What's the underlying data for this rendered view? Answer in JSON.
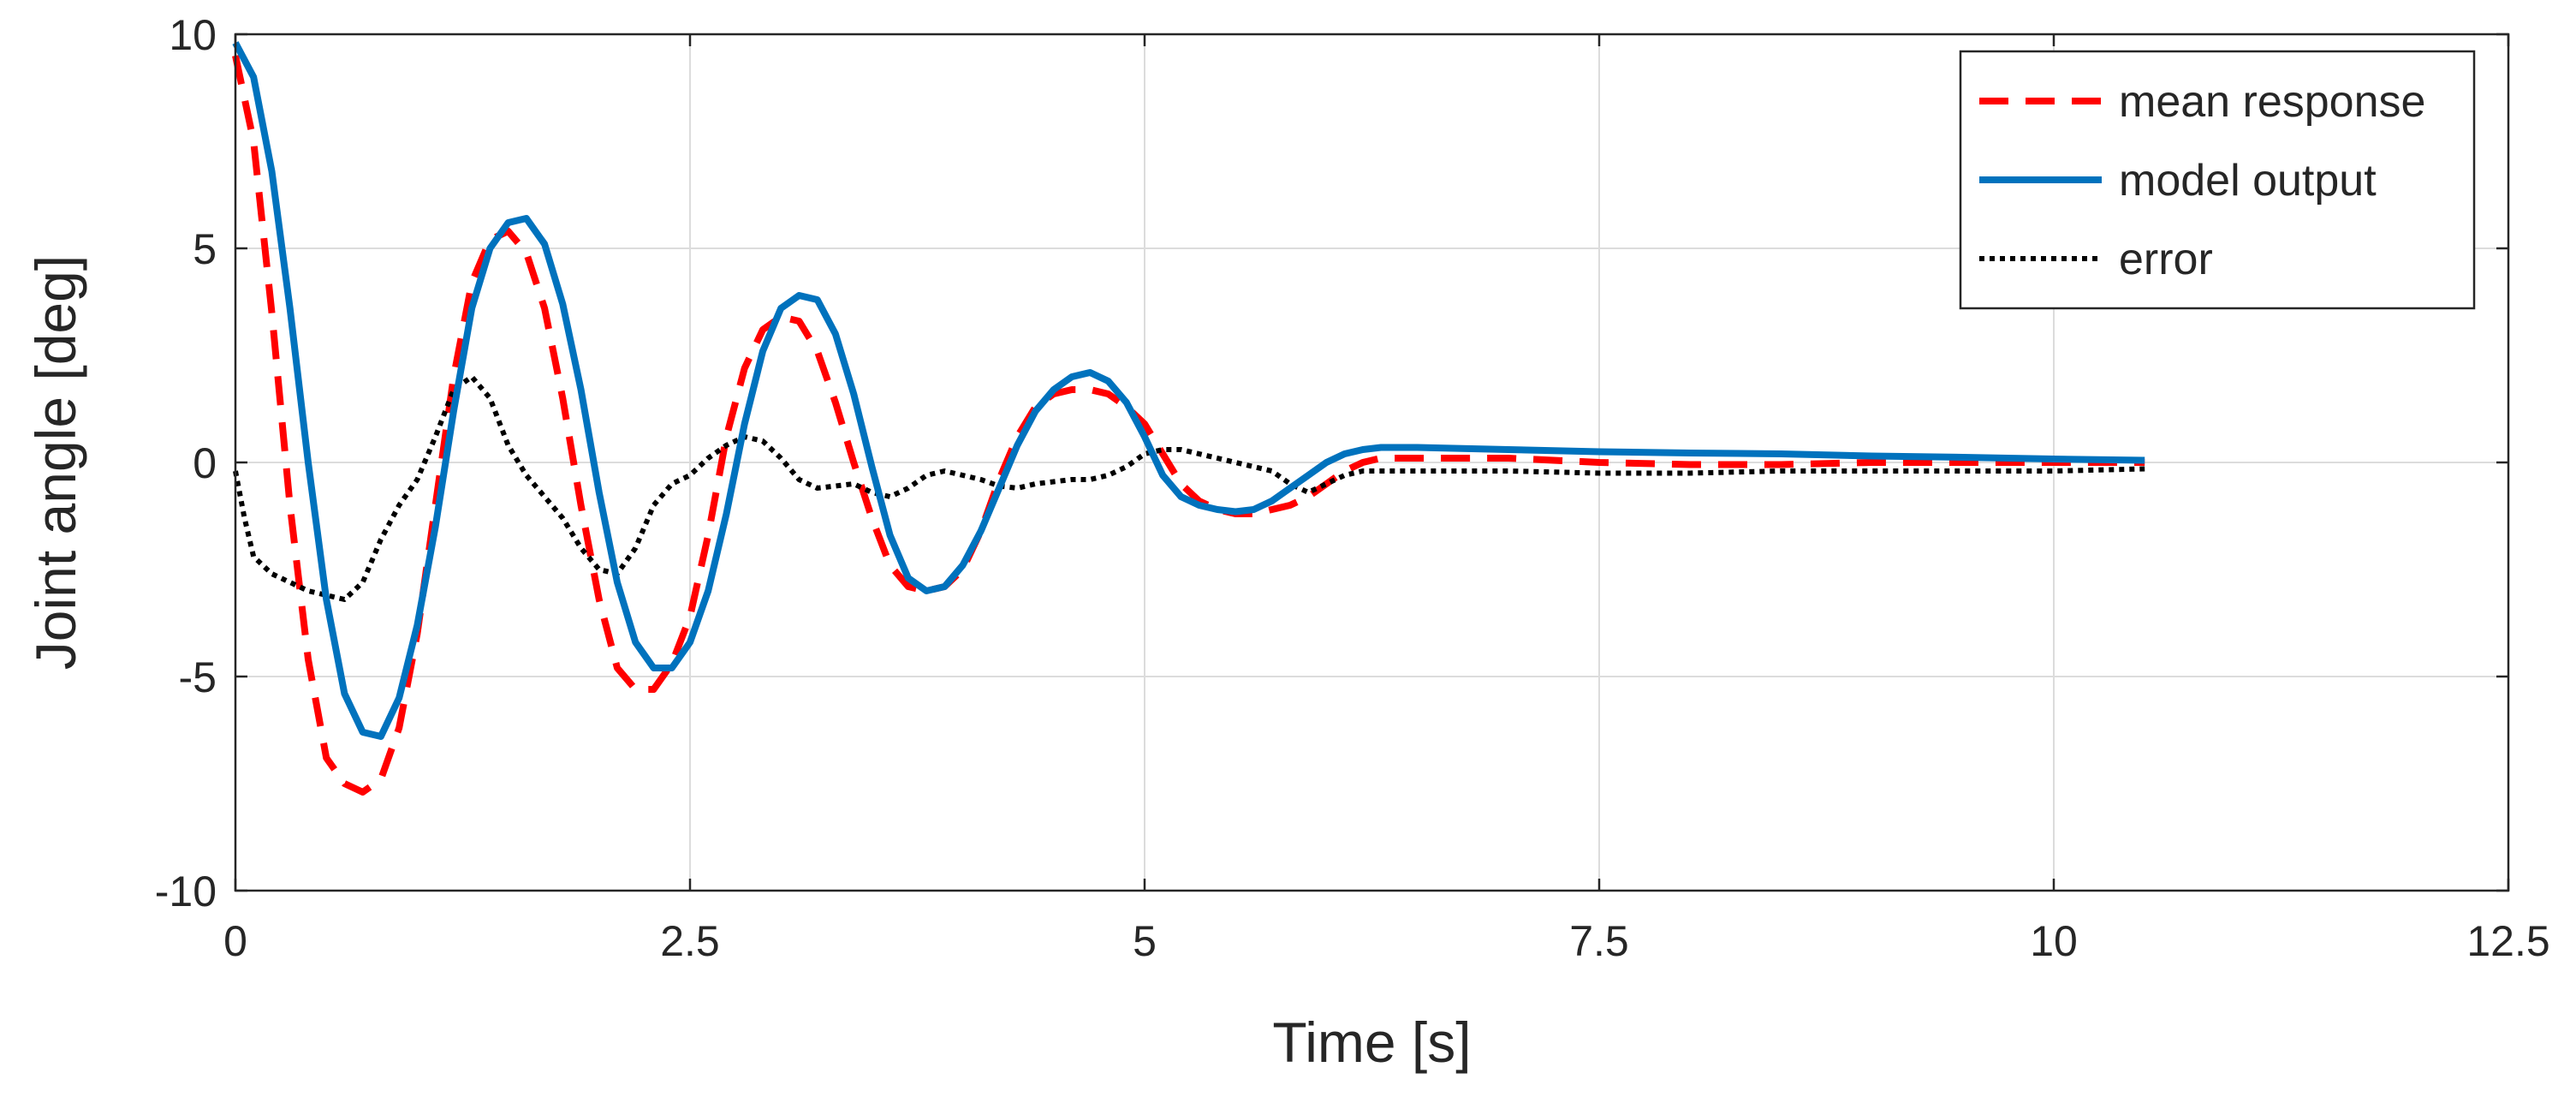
{
  "chart_data": {
    "type": "line",
    "title": "",
    "xlabel": "Time [s]",
    "ylabel": "Joint angle [deg]",
    "xlim": [
      0,
      12.5
    ],
    "ylim": [
      -10,
      10
    ],
    "xticks": [
      0,
      2.5,
      5,
      7.5,
      10,
      12.5
    ],
    "xtick_labels": [
      "0",
      "2.5",
      "5",
      "7.5",
      "10",
      "12.5"
    ],
    "yticks": [
      -10,
      -5,
      0,
      5,
      10
    ],
    "ytick_labels": [
      "-10",
      "-5",
      "0",
      "5",
      "10"
    ],
    "grid": true,
    "legend_position": "top-right",
    "series": [
      {
        "name": "mean response",
        "color": "#ff0000",
        "style": "dashed",
        "x": [
          0,
          0.1,
          0.2,
          0.3,
          0.4,
          0.5,
          0.6,
          0.7,
          0.8,
          0.9,
          1.0,
          1.1,
          1.2,
          1.3,
          1.4,
          1.5,
          1.6,
          1.7,
          1.8,
          1.9,
          2.0,
          2.1,
          2.2,
          2.3,
          2.4,
          2.5,
          2.6,
          2.7,
          2.8,
          2.9,
          3.0,
          3.1,
          3.2,
          3.3,
          3.4,
          3.5,
          3.6,
          3.7,
          3.8,
          3.9,
          4.0,
          4.1,
          4.2,
          4.3,
          4.4,
          4.5,
          4.6,
          4.7,
          4.8,
          4.9,
          5.0,
          5.1,
          5.2,
          5.3,
          5.4,
          5.5,
          5.6,
          5.7,
          5.8,
          5.9,
          6.0,
          6.1,
          6.2,
          6.3,
          6.5,
          7.0,
          7.5,
          8.0,
          8.5,
          9.0,
          9.5,
          10.0,
          10.5
        ],
        "y": [
          9.5,
          7.5,
          3.5,
          -1.0,
          -4.6,
          -6.9,
          -7.5,
          -7.7,
          -7.4,
          -6.2,
          -4.0,
          -1.0,
          2.0,
          4.2,
          5.2,
          5.4,
          4.9,
          3.6,
          1.5,
          -1.0,
          -3.2,
          -4.8,
          -5.3,
          -5.3,
          -4.7,
          -3.6,
          -1.7,
          0.6,
          2.2,
          3.1,
          3.4,
          3.3,
          2.6,
          1.4,
          0.0,
          -1.3,
          -2.4,
          -2.9,
          -3.0,
          -2.9,
          -2.5,
          -1.6,
          -0.4,
          0.6,
          1.3,
          1.6,
          1.7,
          1.7,
          1.6,
          1.3,
          0.9,
          0.2,
          -0.5,
          -0.9,
          -1.1,
          -1.2,
          -1.2,
          -1.1,
          -1.0,
          -0.8,
          -0.5,
          -0.2,
          0.0,
          0.1,
          0.1,
          0.1,
          0.0,
          -0.05,
          -0.05,
          0.0,
          0.0,
          0.0,
          0.0
        ]
      },
      {
        "name": "model output",
        "color": "#0072bd",
        "style": "solid",
        "x": [
          0,
          0.1,
          0.2,
          0.3,
          0.4,
          0.5,
          0.6,
          0.7,
          0.8,
          0.9,
          1.0,
          1.1,
          1.2,
          1.3,
          1.4,
          1.5,
          1.6,
          1.7,
          1.8,
          1.9,
          2.0,
          2.1,
          2.2,
          2.3,
          2.4,
          2.5,
          2.6,
          2.7,
          2.8,
          2.9,
          3.0,
          3.1,
          3.2,
          3.3,
          3.4,
          3.5,
          3.6,
          3.7,
          3.8,
          3.9,
          4.0,
          4.1,
          4.2,
          4.3,
          4.4,
          4.5,
          4.6,
          4.7,
          4.8,
          4.9,
          5.0,
          5.1,
          5.2,
          5.3,
          5.4,
          5.5,
          5.6,
          5.7,
          5.8,
          5.9,
          6.0,
          6.1,
          6.2,
          6.3,
          6.5,
          7.0,
          7.5,
          8.0,
          8.5,
          9.0,
          9.5,
          10.0,
          10.5
        ],
        "y": [
          9.8,
          9.0,
          6.8,
          3.6,
          0.0,
          -3.2,
          -5.4,
          -6.3,
          -6.4,
          -5.5,
          -3.8,
          -1.5,
          1.2,
          3.6,
          5.0,
          5.6,
          5.7,
          5.1,
          3.7,
          1.7,
          -0.7,
          -2.8,
          -4.2,
          -4.8,
          -4.8,
          -4.2,
          -3.0,
          -1.2,
          0.9,
          2.6,
          3.6,
          3.9,
          3.8,
          3.0,
          1.6,
          -0.1,
          -1.7,
          -2.7,
          -3.0,
          -2.9,
          -2.4,
          -1.6,
          -0.6,
          0.4,
          1.2,
          1.7,
          2.0,
          2.1,
          1.9,
          1.4,
          0.6,
          -0.3,
          -0.8,
          -1.0,
          -1.1,
          -1.15,
          -1.1,
          -0.9,
          -0.6,
          -0.3,
          0.0,
          0.2,
          0.3,
          0.35,
          0.35,
          0.3,
          0.25,
          0.22,
          0.2,
          0.15,
          0.12,
          0.08,
          0.05
        ]
      },
      {
        "name": "error",
        "color": "#000000",
        "style": "dotted",
        "x": [
          0,
          0.05,
          0.1,
          0.2,
          0.3,
          0.4,
          0.5,
          0.6,
          0.7,
          0.8,
          0.9,
          1.0,
          1.1,
          1.2,
          1.3,
          1.4,
          1.5,
          1.6,
          1.7,
          1.8,
          1.9,
          2.0,
          2.1,
          2.2,
          2.3,
          2.4,
          2.5,
          2.6,
          2.7,
          2.8,
          2.9,
          3.0,
          3.1,
          3.2,
          3.3,
          3.4,
          3.5,
          3.6,
          3.7,
          3.8,
          3.9,
          4.0,
          4.1,
          4.2,
          4.3,
          4.4,
          4.5,
          4.6,
          4.7,
          4.8,
          4.9,
          5.0,
          5.1,
          5.2,
          5.3,
          5.4,
          5.5,
          5.6,
          5.7,
          5.8,
          5.9,
          6.0,
          6.1,
          6.2,
          6.3,
          6.5,
          7.0,
          7.5,
          8.0,
          8.5,
          9.0,
          9.5,
          10.0,
          10.5
        ],
        "y": [
          -0.2,
          -1.3,
          -2.2,
          -2.6,
          -2.8,
          -3.0,
          -3.1,
          -3.2,
          -2.8,
          -1.8,
          -1.0,
          -0.4,
          0.6,
          1.7,
          2.0,
          1.5,
          0.4,
          -0.3,
          -0.8,
          -1.3,
          -2.0,
          -2.5,
          -2.6,
          -2.0,
          -1.0,
          -0.5,
          -0.3,
          0.1,
          0.4,
          0.6,
          0.5,
          0.1,
          -0.4,
          -0.6,
          -0.55,
          -0.5,
          -0.7,
          -0.8,
          -0.6,
          -0.3,
          -0.2,
          -0.3,
          -0.4,
          -0.55,
          -0.6,
          -0.5,
          -0.45,
          -0.4,
          -0.4,
          -0.3,
          -0.1,
          0.2,
          0.3,
          0.3,
          0.2,
          0.1,
          0.0,
          -0.1,
          -0.2,
          -0.5,
          -0.7,
          -0.5,
          -0.3,
          -0.2,
          -0.2,
          -0.2,
          -0.2,
          -0.25,
          -0.25,
          -0.2,
          -0.2,
          -0.2,
          -0.2,
          -0.15
        ]
      }
    ]
  }
}
